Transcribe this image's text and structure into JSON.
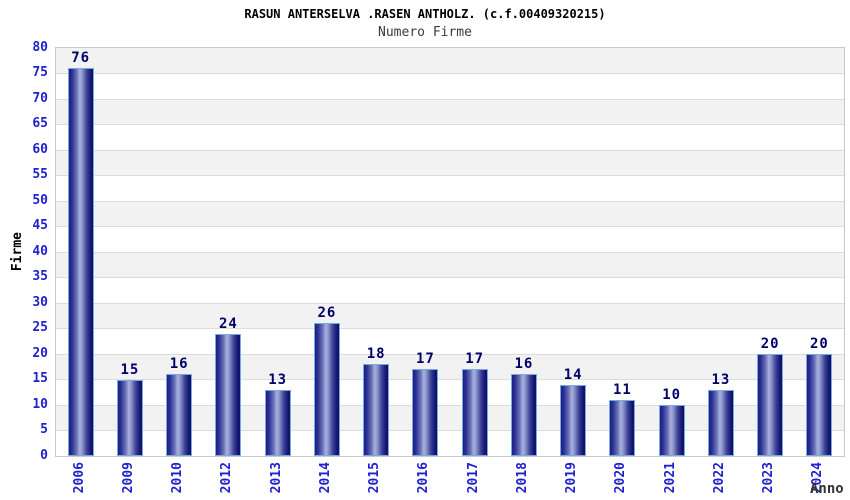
{
  "chart_data": {
    "type": "bar",
    "title": "RASUN ANTERSELVA .RASEN ANTHOLZ. (c.f.00409320215)",
    "subtitle": "Numero Firme",
    "xlabel": "Anno",
    "ylabel": "Firme",
    "categories": [
      "2006",
      "2009",
      "2010",
      "2012",
      "2013",
      "2014",
      "2015",
      "2016",
      "2017",
      "2018",
      "2019",
      "2020",
      "2021",
      "2022",
      "2023",
      "2024"
    ],
    "values": [
      76,
      15,
      16,
      24,
      13,
      26,
      18,
      17,
      17,
      16,
      14,
      11,
      10,
      13,
      20,
      20
    ],
    "ylim": [
      0,
      80
    ],
    "ytick_step": 5,
    "grid": true,
    "legend": "none",
    "bands": "alternating gray/white horizontal stripes every 5 units, gray at top",
    "value_labels_shown": true,
    "colors": {
      "background": "#ffffff",
      "title_color": "#000000",
      "subtitle_color": "#3c3c3c",
      "axis_tick_label": "#2121cd",
      "value_label": "#00006b",
      "ylabel_color": "#000000",
      "xlabel_color": "#333333",
      "bar_border": "#74abe2",
      "bar_dark": "#15156f",
      "bar_light": "#a9b1de",
      "band_gray": "#f2f2f2",
      "grid_line": "#dcdcdc",
      "plot_border": "#c9c9c9"
    }
  }
}
